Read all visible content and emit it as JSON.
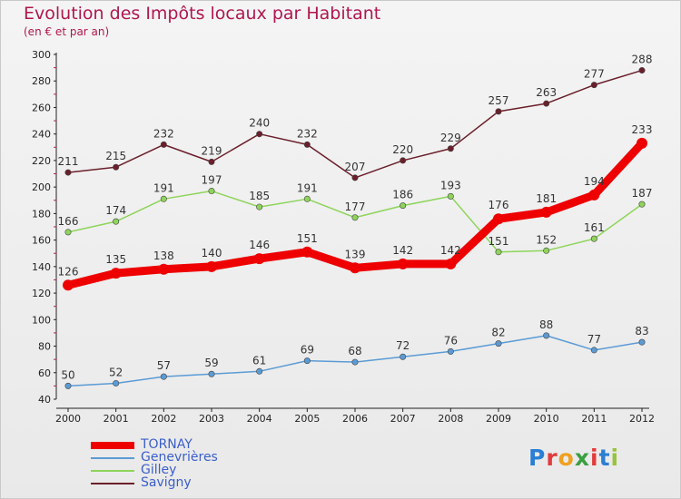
{
  "title": "Evolution des Impôts locaux par Habitant",
  "subtitle": "(en € et par an)",
  "chart_data": {
    "type": "line",
    "title": "Evolution des Impôts locaux par Habitant",
    "subtitle": "(en € et par an)",
    "x": [
      "2000",
      "2001",
      "2002",
      "2003",
      "2004",
      "2005",
      "2006",
      "2007",
      "2008",
      "2009",
      "2010",
      "2011",
      "2012"
    ],
    "ylim": [
      40,
      300
    ],
    "yticks": [
      40,
      60,
      80,
      100,
      120,
      140,
      160,
      180,
      200,
      220,
      240,
      260,
      280,
      300
    ],
    "grid": false,
    "legend_position": "bottom-left",
    "series": [
      {
        "name": "Savigny",
        "color": "#6b1f2a",
        "values": [
          211,
          215,
          232,
          219,
          240,
          232,
          207,
          220,
          229,
          257,
          263,
          277,
          288
        ]
      },
      {
        "name": "Gilley",
        "color": "#8ed45a",
        "values": [
          166,
          174,
          191,
          197,
          185,
          191,
          177,
          186,
          193,
          151,
          152,
          161,
          187
        ]
      },
      {
        "name": "Genevrières",
        "color": "#5b9bd5",
        "values": [
          50,
          52,
          57,
          59,
          61,
          69,
          68,
          72,
          76,
          82,
          88,
          77,
          83
        ]
      },
      {
        "name": "TORNAY",
        "color": "#ee0000",
        "values": [
          126,
          135,
          138,
          140,
          146,
          151,
          139,
          142,
          142,
          176,
          181,
          194,
          233
        ]
      }
    ]
  },
  "legend": [
    {
      "label": "TORNAY",
      "color": "#ee0000"
    },
    {
      "label": "Genevrières",
      "color": "#5b9bd5"
    },
    {
      "label": "Gilley",
      "color": "#8ed45a"
    },
    {
      "label": "Savigny",
      "color": "#6b1f2a"
    }
  ],
  "brand": {
    "letters": [
      "P",
      "r",
      "o",
      "x",
      "i",
      "t",
      "i"
    ],
    "colors": [
      "#2a7fd4",
      "#e23b3b",
      "#f0a020",
      "#3aa040",
      "#e23b3b",
      "#2a7fd4",
      "#9ac23c"
    ]
  }
}
